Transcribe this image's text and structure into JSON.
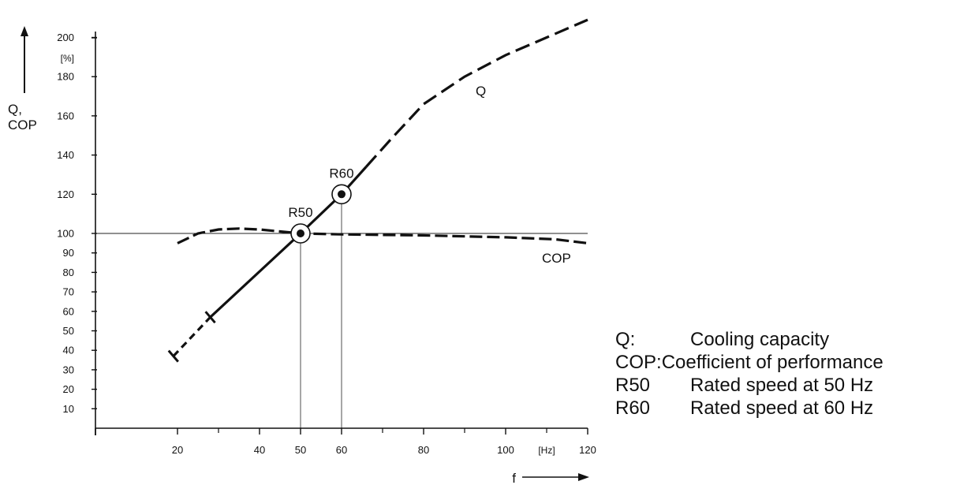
{
  "chart_data": {
    "type": "line",
    "title": "",
    "xlabel": "f",
    "ylabel": [
      "Q,",
      "COP"
    ],
    "x_unit": "[Hz]",
    "y_unit": "[%]",
    "xlim": [
      0,
      120
    ],
    "ylim": [
      0,
      200
    ],
    "x_ticks": [
      20,
      40,
      50,
      60,
      80,
      100,
      120
    ],
    "y_ticks": [
      10,
      20,
      30,
      40,
      50,
      60,
      70,
      80,
      90,
      100,
      120,
      140,
      160,
      180,
      200
    ],
    "reference_line_y": 100,
    "series": [
      {
        "name": "Q",
        "segments": [
          {
            "style": "dashed",
            "points": [
              [
                19,
                37
              ],
              [
                28,
                57
              ]
            ]
          },
          {
            "style": "solid",
            "points": [
              [
                28,
                57
              ],
              [
                50,
                100
              ],
              [
                60,
                120
              ],
              [
                66,
                134
              ]
            ]
          },
          {
            "style": "dashed",
            "points": [
              [
                66,
                134
              ],
              [
                72,
                148
              ],
              [
                80,
                166
              ],
              [
                90,
                180
              ],
              [
                100,
                191
              ],
              [
                110,
                200
              ],
              [
                120,
                209
              ]
            ]
          }
        ],
        "end_markers": [
          [
            19,
            37
          ],
          [
            28,
            57
          ]
        ]
      },
      {
        "name": "COP",
        "segments": [
          {
            "style": "dashed",
            "points": [
              [
                20,
                95
              ],
              [
                25,
                100
              ],
              [
                30,
                102
              ],
              [
                35,
                102.5
              ],
              [
                40,
                102
              ],
              [
                45,
                101
              ],
              [
                50,
                100
              ],
              [
                60,
                99.5
              ],
              [
                80,
                99
              ],
              [
                100,
                98
              ],
              [
                112,
                97
              ],
              [
                120,
                95
              ]
            ]
          }
        ]
      }
    ],
    "points": [
      {
        "label": "R50",
        "x": 50,
        "y": 100
      },
      {
        "label": "R60",
        "x": 60,
        "y": 120
      }
    ],
    "legend": [
      {
        "key": "Q:",
        "text": "Cooling capacity"
      },
      {
        "key": "COP:",
        "text": "Coefficient of performance"
      },
      {
        "key": "R50",
        "text": "Rated speed at 50 Hz"
      },
      {
        "key": "R60",
        "text": "Rated speed at 60 Hz"
      }
    ]
  }
}
